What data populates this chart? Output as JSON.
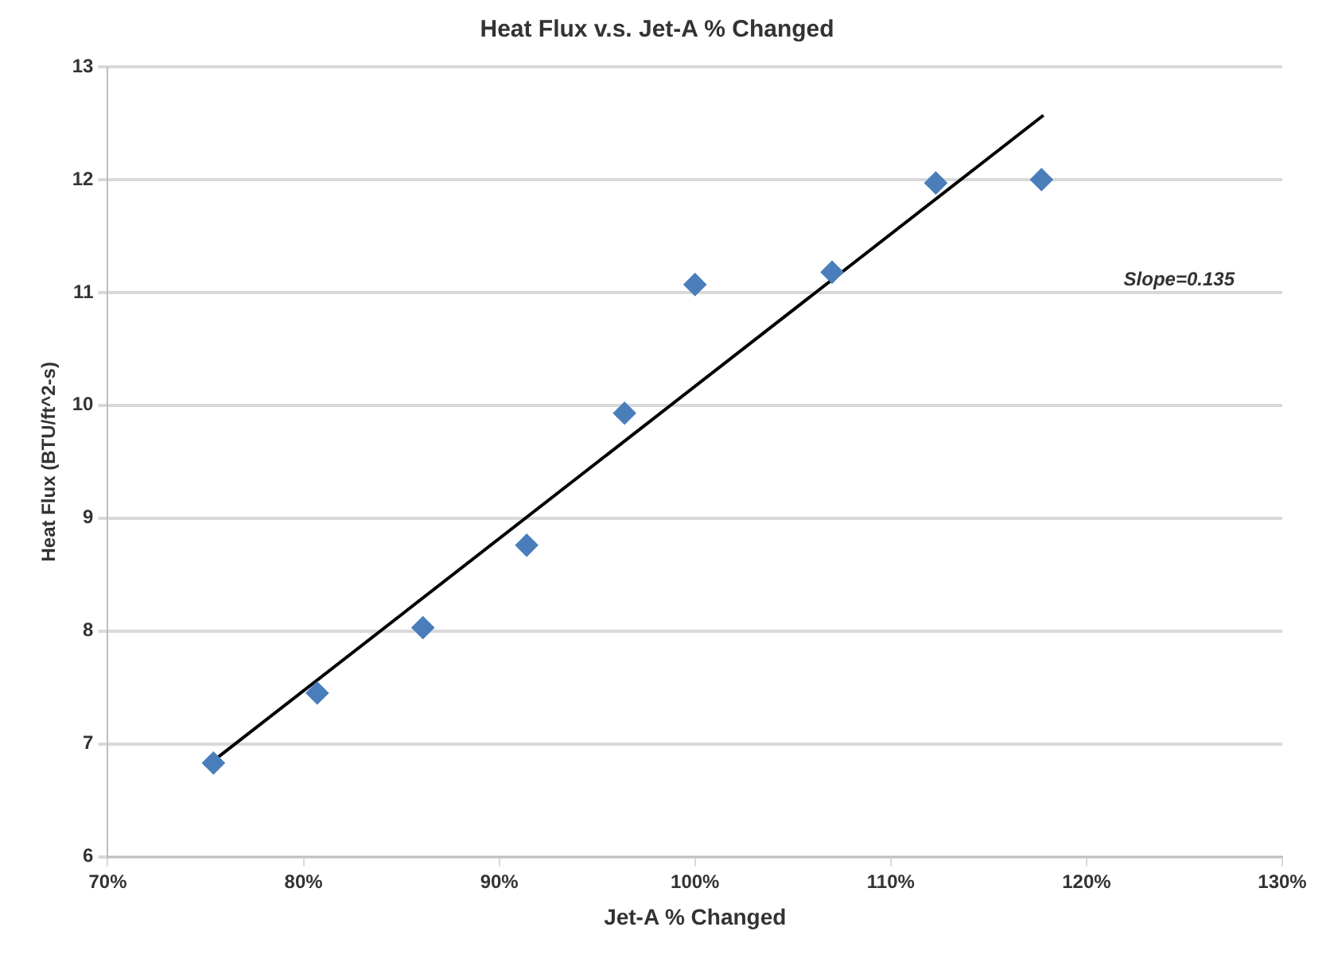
{
  "chart_data": {
    "type": "scatter",
    "title": "Heat Flux v.s. Jet-A % Changed",
    "xlabel": "Jet-A % Changed",
    "ylabel": "Heat Flux (BTU/ft^2-s)",
    "x": [
      75.4,
      80.7,
      86.1,
      91.4,
      96.4,
      100.0,
      107.0,
      112.3,
      117.7
    ],
    "series": [
      {
        "type": "scatter",
        "color": "#4a7ebb",
        "marker": "diamond",
        "values": [
          6.83,
          7.45,
          8.03,
          8.76,
          9.93,
          11.07,
          11.18,
          11.97,
          12.0
        ]
      },
      {
        "type": "line",
        "color": "#000000",
        "marker": "none",
        "x": [
          75.4,
          117.8
        ],
        "values": [
          6.85,
          12.57
        ]
      }
    ],
    "xlim": [
      70,
      130
    ],
    "xticks": [
      {
        "value": 70,
        "label": "70%"
      },
      {
        "value": 80,
        "label": "80%"
      },
      {
        "value": 90,
        "label": "90%"
      },
      {
        "value": 100,
        "label": "100%"
      },
      {
        "value": 110,
        "label": "110%"
      },
      {
        "value": 120,
        "label": "120%"
      },
      {
        "value": 130,
        "label": "130%"
      }
    ],
    "ylim": [
      6,
      13
    ],
    "yticks": [
      6,
      7,
      8,
      9,
      10,
      11,
      12,
      13
    ],
    "grid": "y",
    "legend": false,
    "annotations": [
      "Slope=0.135"
    ]
  }
}
